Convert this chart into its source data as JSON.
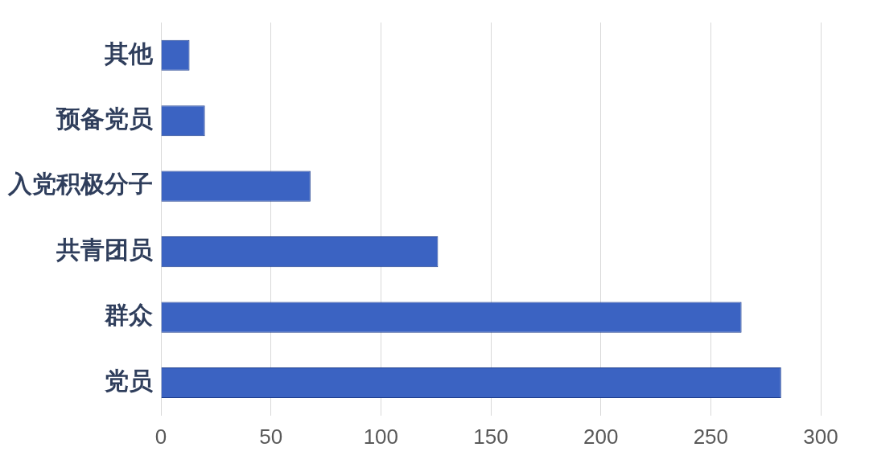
{
  "chart_data": {
    "type": "bar",
    "orientation": "horizontal",
    "categories": [
      "其他",
      "预备党员",
      "入党积极分子",
      "共青团员",
      "群众",
      "党员"
    ],
    "values": [
      13,
      20,
      68,
      126,
      264,
      282
    ],
    "color": "#3b63c2",
    "xlim": [
      0,
      300
    ],
    "xticks": [
      0,
      50,
      100,
      150,
      200,
      250,
      300
    ],
    "grid": "x",
    "legend": false
  }
}
